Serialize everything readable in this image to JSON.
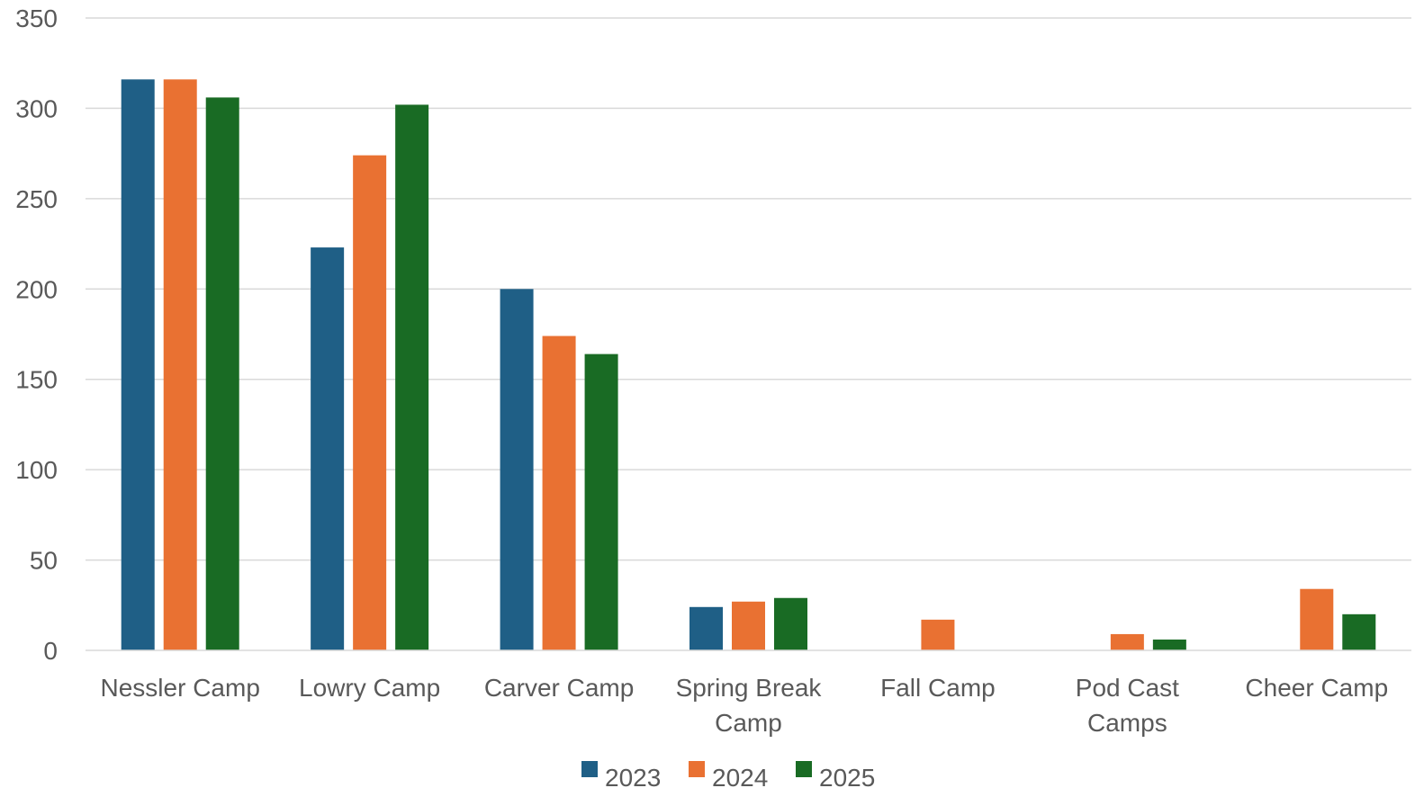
{
  "chart_data": {
    "type": "bar",
    "title": "",
    "xlabel": "",
    "ylabel": "",
    "categories": [
      [
        "Nessler Camp"
      ],
      [
        "Lowry Camp"
      ],
      [
        "Carver Camp"
      ],
      [
        "Spring Break",
        "Camp"
      ],
      [
        "Fall Camp"
      ],
      [
        "Pod Cast",
        "Camps"
      ],
      [
        "Cheer Camp"
      ]
    ],
    "series": [
      {
        "name": "2023",
        "color": "#1f5f86",
        "values": [
          316,
          223,
          200,
          24,
          null,
          null,
          null
        ]
      },
      {
        "name": "2024",
        "color": "#e97132",
        "values": [
          316,
          274,
          174,
          27,
          17,
          9,
          34
        ]
      },
      {
        "name": "2025",
        "color": "#196b24",
        "values": [
          306,
          302,
          164,
          29,
          null,
          6,
          20
        ]
      }
    ],
    "ylim": [
      0,
      350
    ],
    "yticks": [
      0,
      50,
      100,
      150,
      200,
      250,
      300,
      350
    ],
    "grid": true,
    "legend_position": "bottom"
  }
}
